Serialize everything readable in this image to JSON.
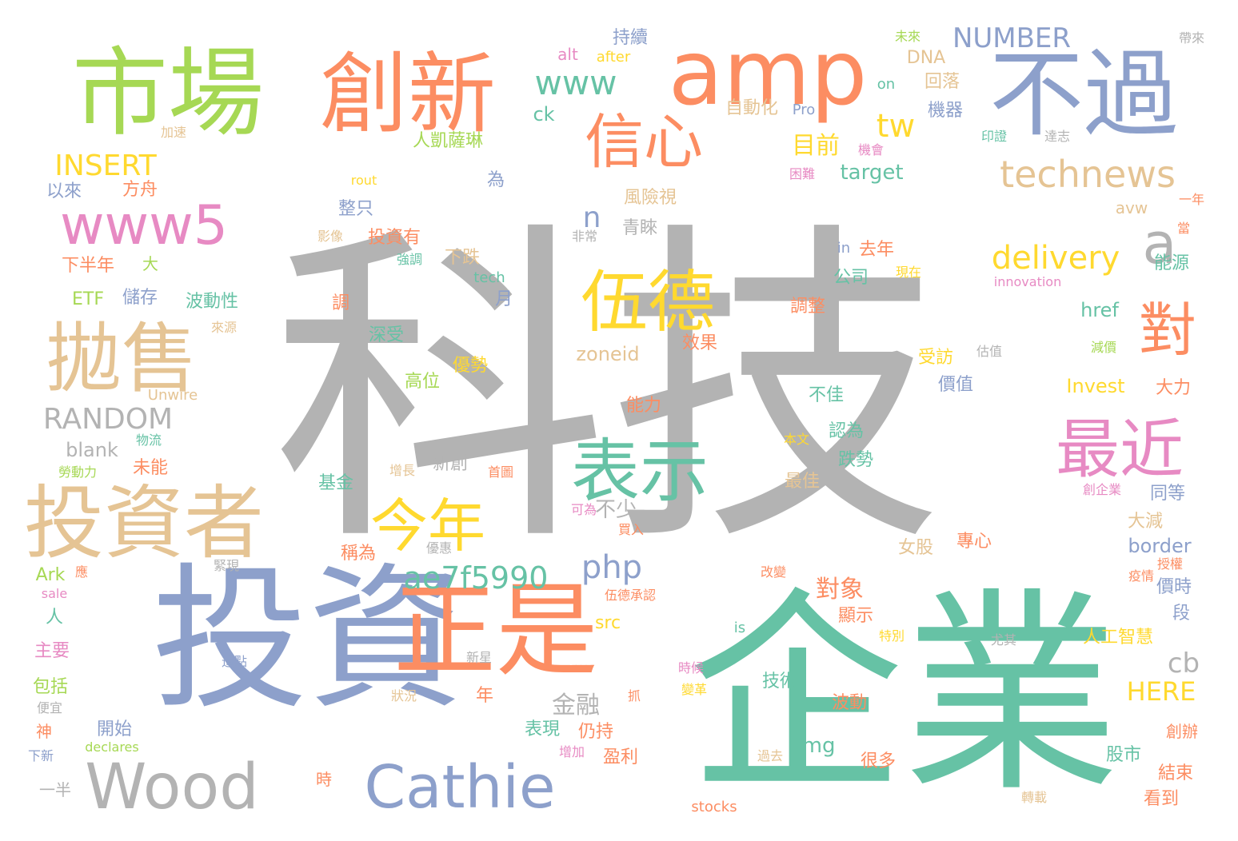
{
  "palette": {
    "gray": "#b3b3b3",
    "green": "#66c2a5",
    "orange": "#fc8d62",
    "blue": "#8da0cb",
    "pink": "#e78ac3",
    "lime": "#a6d854",
    "yellow": "#ffd92f",
    "tan": "#e5c494"
  },
  "words": [
    {
      "text": "科技",
      "weight": 1.0,
      "color": "gray"
    },
    {
      "text": "企業",
      "weight": 0.68,
      "color": "green"
    },
    {
      "text": "投資",
      "weight": 0.55,
      "color": "blue"
    },
    {
      "text": "市場",
      "weight": 0.4,
      "color": "lime"
    },
    {
      "text": "創新",
      "weight": 0.36,
      "color": "orange"
    },
    {
      "text": "amp",
      "weight": 0.36,
      "color": "orange"
    },
    {
      "text": "不過",
      "weight": 0.38,
      "color": "blue"
    },
    {
      "text": "正是",
      "weight": 0.37,
      "color": "orange"
    },
    {
      "text": "投資者",
      "weight": 0.33,
      "color": "tan"
    },
    {
      "text": "拋售",
      "weight": 0.3,
      "color": "tan"
    },
    {
      "text": "Wood",
      "weight": 0.3,
      "color": "gray"
    },
    {
      "text": "Cathie",
      "weight": 0.28,
      "color": "blue"
    },
    {
      "text": "表示",
      "weight": 0.26,
      "color": "green"
    },
    {
      "text": "伍德",
      "weight": 0.25,
      "color": "yellow"
    },
    {
      "text": "信心",
      "weight": 0.25,
      "color": "orange"
    },
    {
      "text": "最近",
      "weight": 0.25,
      "color": "pink"
    },
    {
      "text": "今年",
      "weight": 0.23,
      "color": "yellow"
    },
    {
      "text": "www5",
      "weight": 0.22,
      "color": "pink"
    },
    {
      "text": "對",
      "weight": 0.22,
      "color": "orange"
    },
    {
      "text": "a",
      "weight": 0.2,
      "color": "gray"
    },
    {
      "text": "technews",
      "weight": 0.15,
      "color": "tan"
    },
    {
      "text": "www",
      "weight": 0.14,
      "color": "green"
    },
    {
      "text": "delivery",
      "weight": 0.14,
      "color": "yellow"
    },
    {
      "text": "ae7f5990",
      "weight": 0.13,
      "color": "green"
    },
    {
      "text": "php",
      "weight": 0.13,
      "color": "blue"
    },
    {
      "text": "tw",
      "weight": 0.13,
      "color": "yellow"
    },
    {
      "text": "RANDOM",
      "weight": 0.12,
      "color": "gray"
    },
    {
      "text": "INSERT",
      "weight": 0.12,
      "color": "yellow"
    },
    {
      "text": "NUMBER",
      "weight": 0.12,
      "color": "blue"
    },
    {
      "text": "n",
      "weight": 0.12,
      "color": "blue"
    },
    {
      "text": "cb",
      "weight": 0.12,
      "color": "gray"
    },
    {
      "text": "HERE",
      "weight": 0.1,
      "color": "yellow"
    },
    {
      "text": "目前",
      "weight": 0.1,
      "color": "yellow"
    },
    {
      "text": "對象",
      "weight": 0.1,
      "color": "orange"
    },
    {
      "text": "金融",
      "weight": 0.1,
      "color": "gray"
    },
    {
      "text": "不少",
      "weight": 0.09,
      "color": "gray"
    },
    {
      "text": "target",
      "weight": 0.08,
      "color": "green"
    },
    {
      "text": "blank",
      "weight": 0.08,
      "color": "gray"
    },
    {
      "text": "zoneid",
      "weight": 0.08,
      "color": "tan"
    },
    {
      "text": "border",
      "weight": 0.08,
      "color": "blue"
    },
    {
      "text": "Invest",
      "weight": 0.08,
      "color": "yellow"
    },
    {
      "text": "href",
      "weight": 0.08,
      "color": "green"
    },
    {
      "text": "img",
      "weight": 0.08,
      "color": "green"
    },
    {
      "text": "src",
      "weight": 0.07,
      "color": "yellow"
    },
    {
      "text": "Ark",
      "weight": 0.07,
      "color": "lime"
    },
    {
      "text": "ETF",
      "weight": 0.07,
      "color": "lime"
    },
    {
      "text": "ck",
      "weight": 0.07,
      "color": "green"
    },
    {
      "text": "alt",
      "weight": 0.06,
      "color": "pink"
    },
    {
      "text": "avw",
      "weight": 0.06,
      "color": "tan"
    },
    {
      "text": "DNA",
      "weight": 0.06,
      "color": "tan"
    },
    {
      "text": "on",
      "weight": 0.05,
      "color": "green"
    },
    {
      "text": "in",
      "weight": 0.05,
      "color": "blue"
    },
    {
      "text": "is",
      "weight": 0.05,
      "color": "green"
    },
    {
      "text": "Pro",
      "weight": 0.05,
      "color": "blue"
    },
    {
      "text": "after",
      "weight": 0.05,
      "color": "yellow"
    },
    {
      "text": "rout",
      "weight": 0.05,
      "color": "yellow"
    },
    {
      "text": "tech",
      "weight": 0.05,
      "color": "green"
    },
    {
      "text": "Unwire",
      "weight": 0.05,
      "color": "tan"
    },
    {
      "text": "innovation",
      "weight": 0.05,
      "color": "pink"
    },
    {
      "text": "declares",
      "weight": 0.05,
      "color": "lime"
    },
    {
      "text": "stocks",
      "weight": 0.05,
      "color": "orange"
    },
    {
      "text": "sale",
      "weight": 0.05,
      "color": "pink"
    },
    {
      "text": "持續",
      "weight": 0.07,
      "color": "blue"
    },
    {
      "text": "回落",
      "weight": 0.07,
      "color": "tan"
    },
    {
      "text": "機器",
      "weight": 0.07,
      "color": "blue"
    },
    {
      "text": "自動化",
      "weight": 0.07,
      "color": "tan"
    },
    {
      "text": "人凱薩琳",
      "weight": 0.06,
      "color": "lime"
    },
    {
      "text": "風險視",
      "weight": 0.07,
      "color": "tan"
    },
    {
      "text": "青睞",
      "weight": 0.07,
      "color": "gray"
    },
    {
      "text": "整只",
      "weight": 0.07,
      "color": "blue"
    },
    {
      "text": "投資有",
      "weight": 0.07,
      "color": "orange"
    },
    {
      "text": "下跌",
      "weight": 0.07,
      "color": "tan"
    },
    {
      "text": "去年",
      "weight": 0.07,
      "color": "orange"
    },
    {
      "text": "公司",
      "weight": 0.07,
      "color": "green"
    },
    {
      "text": "能源",
      "weight": 0.07,
      "color": "green"
    },
    {
      "text": "以來",
      "weight": 0.07,
      "color": "blue"
    },
    {
      "text": "方舟",
      "weight": 0.07,
      "color": "orange"
    },
    {
      "text": "為",
      "weight": 0.07,
      "color": "blue"
    },
    {
      "text": "下半年",
      "weight": 0.07,
      "color": "orange"
    },
    {
      "text": "大",
      "weight": 0.06,
      "color": "lime"
    },
    {
      "text": "儲存",
      "weight": 0.07,
      "color": "blue"
    },
    {
      "text": "波動性",
      "weight": 0.07,
      "color": "green"
    },
    {
      "text": "月",
      "weight": 0.07,
      "color": "blue"
    },
    {
      "text": "調",
      "weight": 0.07,
      "color": "orange"
    },
    {
      "text": "深受",
      "weight": 0.07,
      "color": "green"
    },
    {
      "text": "效果",
      "weight": 0.07,
      "color": "orange"
    },
    {
      "text": "調整",
      "weight": 0.07,
      "color": "orange"
    },
    {
      "text": "受訪",
      "weight": 0.07,
      "color": "yellow"
    },
    {
      "text": "價值",
      "weight": 0.07,
      "color": "blue"
    },
    {
      "text": "優勢",
      "weight": 0.07,
      "color": "yellow"
    },
    {
      "text": "高位",
      "weight": 0.07,
      "color": "lime"
    },
    {
      "text": "能力",
      "weight": 0.07,
      "color": "orange"
    },
    {
      "text": "不佳",
      "weight": 0.07,
      "color": "green"
    },
    {
      "text": "大力",
      "weight": 0.07,
      "color": "orange"
    },
    {
      "text": "認為",
      "weight": 0.07,
      "color": "green"
    },
    {
      "text": "未能",
      "weight": 0.07,
      "color": "orange"
    },
    {
      "text": "新創",
      "weight": 0.07,
      "color": "gray"
    },
    {
      "text": "跌勢",
      "weight": 0.07,
      "color": "green"
    },
    {
      "text": "最佳",
      "weight": 0.07,
      "color": "tan"
    },
    {
      "text": "同等",
      "weight": 0.07,
      "color": "blue"
    },
    {
      "text": "基金",
      "weight": 0.07,
      "color": "green"
    },
    {
      "text": "大減",
      "weight": 0.07,
      "color": "tan"
    },
    {
      "text": "女股",
      "weight": 0.07,
      "color": "tan"
    },
    {
      "text": "專心",
      "weight": 0.07,
      "color": "orange"
    },
    {
      "text": "稱為",
      "weight": 0.07,
      "color": "orange"
    },
    {
      "text": "價時",
      "weight": 0.07,
      "color": "blue"
    },
    {
      "text": "段",
      "weight": 0.07,
      "color": "blue"
    },
    {
      "text": "人",
      "weight": 0.07,
      "color": "green"
    },
    {
      "text": "顯示",
      "weight": 0.07,
      "color": "orange"
    },
    {
      "text": "人工智慧",
      "weight": 0.07,
      "color": "yellow"
    },
    {
      "text": "主要",
      "weight": 0.07,
      "color": "pink"
    },
    {
      "text": "包括",
      "weight": 0.07,
      "color": "lime"
    },
    {
      "text": "技術",
      "weight": 0.07,
      "color": "green"
    },
    {
      "text": "年",
      "weight": 0.07,
      "color": "orange"
    },
    {
      "text": "波動",
      "weight": 0.07,
      "color": "orange"
    },
    {
      "text": "開始",
      "weight": 0.07,
      "color": "blue"
    },
    {
      "text": "表現",
      "weight": 0.07,
      "color": "green"
    },
    {
      "text": "仍持",
      "weight": 0.07,
      "color": "orange"
    },
    {
      "text": "盈利",
      "weight": 0.07,
      "color": "orange"
    },
    {
      "text": "很多",
      "weight": 0.07,
      "color": "orange"
    },
    {
      "text": "股市",
      "weight": 0.07,
      "color": "green"
    },
    {
      "text": "結束",
      "weight": 0.07,
      "color": "orange"
    },
    {
      "text": "看到",
      "weight": 0.07,
      "color": "orange"
    },
    {
      "text": "創辦",
      "weight": 0.06,
      "color": "orange"
    },
    {
      "text": "時",
      "weight": 0.06,
      "color": "orange"
    },
    {
      "text": "神",
      "weight": 0.06,
      "color": "orange"
    },
    {
      "text": "一半",
      "weight": 0.06,
      "color": "gray"
    },
    {
      "text": "帶來",
      "weight": 0.05,
      "color": "gray"
    },
    {
      "text": "未來",
      "weight": 0.05,
      "color": "lime"
    },
    {
      "text": "加速",
      "weight": 0.05,
      "color": "tan"
    },
    {
      "text": "印證",
      "weight": 0.05,
      "color": "green"
    },
    {
      "text": "達志",
      "weight": 0.05,
      "color": "gray"
    },
    {
      "text": "機會",
      "weight": 0.05,
      "color": "pink"
    },
    {
      "text": "困難",
      "weight": 0.05,
      "color": "pink"
    },
    {
      "text": "一年",
      "weight": 0.05,
      "color": "orange"
    },
    {
      "text": "當",
      "weight": 0.05,
      "color": "orange"
    },
    {
      "text": "影像",
      "weight": 0.05,
      "color": "tan"
    },
    {
      "text": "非常",
      "weight": 0.05,
      "color": "gray"
    },
    {
      "text": "強調",
      "weight": 0.05,
      "color": "green"
    },
    {
      "text": "現在",
      "weight": 0.05,
      "color": "yellow"
    },
    {
      "text": "來源",
      "weight": 0.05,
      "color": "tan"
    },
    {
      "text": "估值",
      "weight": 0.05,
      "color": "gray"
    },
    {
      "text": "減價",
      "weight": 0.05,
      "color": "lime"
    },
    {
      "text": "物流",
      "weight": 0.05,
      "color": "green"
    },
    {
      "text": "勞動力",
      "weight": 0.05,
      "color": "lime"
    },
    {
      "text": "增長",
      "weight": 0.05,
      "color": "tan"
    },
    {
      "text": "首圖",
      "weight": 0.05,
      "color": "orange"
    },
    {
      "text": "本文",
      "weight": 0.05,
      "color": "yellow"
    },
    {
      "text": "創企業",
      "weight": 0.05,
      "color": "pink"
    },
    {
      "text": "可為",
      "weight": 0.05,
      "color": "pink"
    },
    {
      "text": "買入",
      "weight": 0.05,
      "color": "orange"
    },
    {
      "text": "優惠",
      "weight": 0.05,
      "color": "gray"
    },
    {
      "text": "應",
      "weight": 0.05,
      "color": "orange"
    },
    {
      "text": "緊現",
      "weight": 0.05,
      "color": "gray"
    },
    {
      "text": "改變",
      "weight": 0.05,
      "color": "orange"
    },
    {
      "text": "授權",
      "weight": 0.05,
      "color": "orange"
    },
    {
      "text": "疫情",
      "weight": 0.05,
      "color": "orange"
    },
    {
      "text": "伍德承認",
      "weight": 0.05,
      "color": "orange"
    },
    {
      "text": "特別",
      "weight": 0.05,
      "color": "yellow"
    },
    {
      "text": "尤其",
      "weight": 0.05,
      "color": "gray"
    },
    {
      "text": "這點",
      "weight": 0.05,
      "color": "blue"
    },
    {
      "text": "新星",
      "weight": 0.05,
      "color": "gray"
    },
    {
      "text": "時候",
      "weight": 0.05,
      "color": "pink"
    },
    {
      "text": "狀況",
      "weight": 0.05,
      "color": "tan"
    },
    {
      "text": "抓",
      "weight": 0.05,
      "color": "orange"
    },
    {
      "text": "變革",
      "weight": 0.05,
      "color": "yellow"
    },
    {
      "text": "便宜",
      "weight": 0.05,
      "color": "gray"
    },
    {
      "text": "下新",
      "weight": 0.05,
      "color": "blue"
    },
    {
      "text": "增加",
      "weight": 0.05,
      "color": "pink"
    },
    {
      "text": "過去",
      "weight": 0.05,
      "color": "tan"
    },
    {
      "text": "轉載",
      "weight": 0.05,
      "color": "tan"
    }
  ]
}
